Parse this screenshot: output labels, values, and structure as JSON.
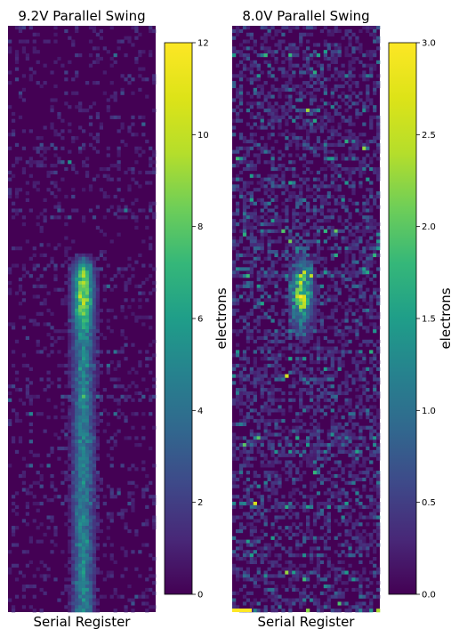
{
  "colors": {
    "colormap": "viridis",
    "cmap_low": "#440154",
    "cmap_high": "#fde725",
    "background": "#ffffff"
  },
  "chart_data": [
    {
      "type": "heatmap",
      "title": "9.2V Parallel Swing",
      "xlabel": "Serial Register",
      "ylabel": "",
      "colorbar": {
        "label": "electrons",
        "range": [
          0,
          12
        ],
        "ticks": [
          0,
          2,
          4,
          6,
          8,
          10,
          12
        ],
        "tick_labels": [
          "0",
          "2",
          "4",
          "6",
          "8",
          "10",
          "12"
        ]
      },
      "features": {
        "description_of_signal": "vertical column of charge from bottom up to ~60% height, brighter blob near the top of the column",
        "column_center_x_fraction": 0.51,
        "column_top_y_fraction": 0.39,
        "blob_center_y_fraction": 0.46,
        "peak_value_electrons": 8.5,
        "background_mean_electrons": 0.4
      }
    },
    {
      "type": "heatmap",
      "title": "8.0V Parallel Swing",
      "xlabel": "Serial Register",
      "ylabel": "",
      "colorbar": {
        "label": "electrons",
        "range": [
          0,
          3
        ],
        "ticks": [
          0,
          0.5,
          1,
          1.5,
          2,
          2.5,
          3
        ],
        "tick_labels": [
          "0.0",
          "0.5",
          "1.0",
          "1.5",
          "2.0",
          "2.5",
          "3.0"
        ]
      },
      "features": {
        "description_of_signal": "small elongated blob near center, noisy horizontal streak background",
        "blob_center_x_fraction": 0.47,
        "blob_center_y_fraction": 0.46,
        "peak_value_electrons": 2.6,
        "background_mean_electrons": 0.25
      }
    }
  ]
}
